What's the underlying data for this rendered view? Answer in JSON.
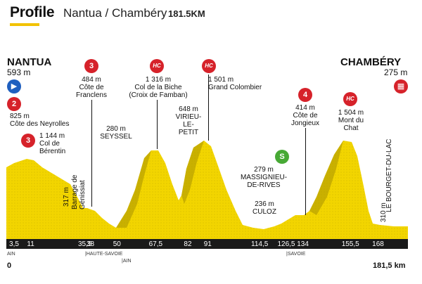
{
  "header": {
    "title": "Profile",
    "route": "Nantua / Chambéry",
    "distance": "181.5KM"
  },
  "start": {
    "name": "NANTUA",
    "altitude": "593 m"
  },
  "finish": {
    "name": "CHAMBÉRY",
    "altitude": "275 m"
  },
  "climbs": [
    {
      "category": "2",
      "altitude": "825 m",
      "name": "Côte des Neyrolles",
      "km": 11
    },
    {
      "category": "3",
      "altitude": "1 144 m",
      "name_line1": "Col de",
      "name_line2": "Bérentin",
      "km": 35.5
    },
    {
      "category": "3",
      "altitude": "484 m",
      "name_line1": "Côte de",
      "name_line2": "Franclens",
      "km": 38
    },
    {
      "category": "HC",
      "altitude": "1 316 m",
      "name_line1": "Col de la Biche",
      "name_line2": "(Croix de Famban)",
      "km": 67.5
    },
    {
      "category": "HC",
      "altitude": "1 501 m",
      "name": "Grand Colombier",
      "km": 91
    },
    {
      "category": "4",
      "altitude": "414 m",
      "name_line1": "Côte de",
      "name_line2": "Jongieux",
      "km": 134
    },
    {
      "category": "HC",
      "altitude": "1 504 m",
      "name": "Mont du Chat",
      "km": 155.5
    }
  ],
  "places": {
    "seyssel_alt": "280 m",
    "seyssel": "SEYSSEL",
    "virieu_alt": "648 m",
    "virieu_1": "VIRIEU-",
    "virieu_2": "LE-PETIT",
    "massignieu_alt": "279 m",
    "massignieu_1": "MASSIGNIEU-",
    "massignieu_2": "DE-RIVES",
    "culoz_alt": "236 m",
    "culoz": "CULOZ",
    "genissiat_alt": "317 m",
    "genissiat": "Barrage de Génissiat",
    "bourget_alt": "310 m",
    "bourget": "LE BOURGET-DU-LAC",
    "sprint_symbol": "S"
  },
  "axis": {
    "ticks": [
      "3,5",
      "11",
      "35,5",
      "38",
      "50",
      "67,5",
      "82",
      "91",
      "114,5",
      "126,5",
      "134",
      "155,5",
      "168"
    ],
    "tick_km": [
      3.5,
      11,
      35.5,
      38,
      50,
      67.5,
      82,
      91,
      114.5,
      126.5,
      134,
      155.5,
      168
    ],
    "start_km": "0",
    "end_km": "181,5 km",
    "regions": [
      "AIN",
      "HAUTE-SAVOIE",
      "AIN",
      "SAVOIE"
    ]
  },
  "colors": {
    "profile_fill": "#f2d500",
    "profile_shadow": "#b8a000",
    "category_red": "#d6222a",
    "sprint_green": "#47a935",
    "start_blue": "#1f5fbf",
    "axis_bar": "#1a1a1a"
  }
}
